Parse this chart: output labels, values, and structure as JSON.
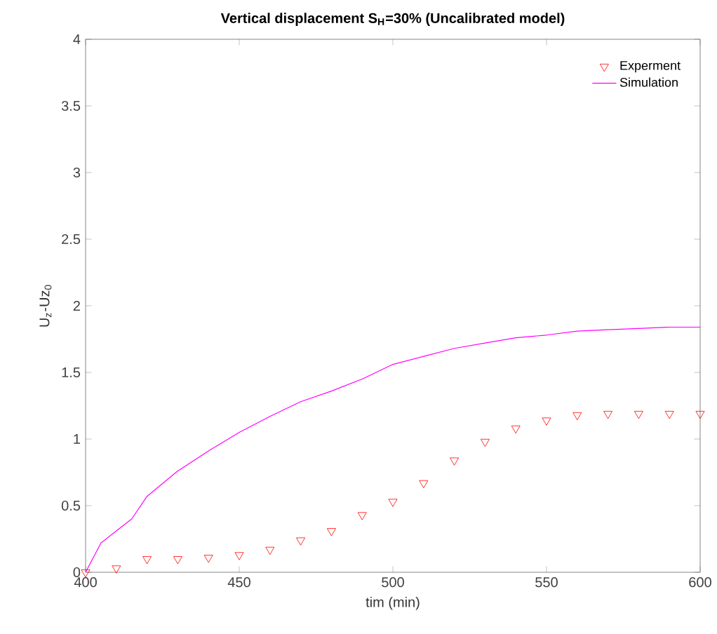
{
  "chart_data": {
    "type": "line",
    "title": "Vertical displacement S$_{H}$=30% (Uncalibrated model)",
    "xlabel": "tim (min)",
    "ylabel": "U$_{z}$-Uz$_{0}$",
    "xlim": [
      400,
      600
    ],
    "ylim": [
      0,
      4
    ],
    "xticks": [
      400,
      450,
      500,
      550,
      600
    ],
    "yticks": [
      0,
      0.5,
      1,
      1.5,
      2,
      2.5,
      3,
      3.5,
      4
    ],
    "grid": false,
    "legend": "top right",
    "series": [
      {
        "name": "Experment",
        "type": "scatter",
        "marker": "triangle",
        "color": "#ff0000",
        "x": [
          400,
          410,
          420,
          430,
          440,
          450,
          460,
          470,
          480,
          490,
          500,
          510,
          520,
          530,
          540,
          550,
          560,
          570,
          580,
          590,
          600
        ],
        "values": [
          0.0,
          0.03,
          0.1,
          0.1,
          0.11,
          0.13,
          0.17,
          0.24,
          0.31,
          0.43,
          0.53,
          0.67,
          0.84,
          0.98,
          1.08,
          1.14,
          1.18,
          1.19,
          1.19,
          1.19,
          1.19
        ]
      },
      {
        "name": "Simulation",
        "type": "line",
        "marker": "none",
        "color": "#ff00ff",
        "x": [
          400,
          405,
          410,
          415,
          420,
          430,
          440,
          450,
          460,
          470,
          480,
          490,
          500,
          510,
          520,
          530,
          540,
          550,
          560,
          570,
          580,
          590,
          600
        ],
        "values": [
          0,
          0.22,
          0.31,
          0.4,
          0.57,
          0.76,
          0.91,
          1.05,
          1.17,
          1.28,
          1.36,
          1.45,
          1.56,
          1.62,
          1.68,
          1.72,
          1.76,
          1.78,
          1.81,
          1.82,
          1.83,
          1.84,
          1.84
        ]
      }
    ]
  }
}
